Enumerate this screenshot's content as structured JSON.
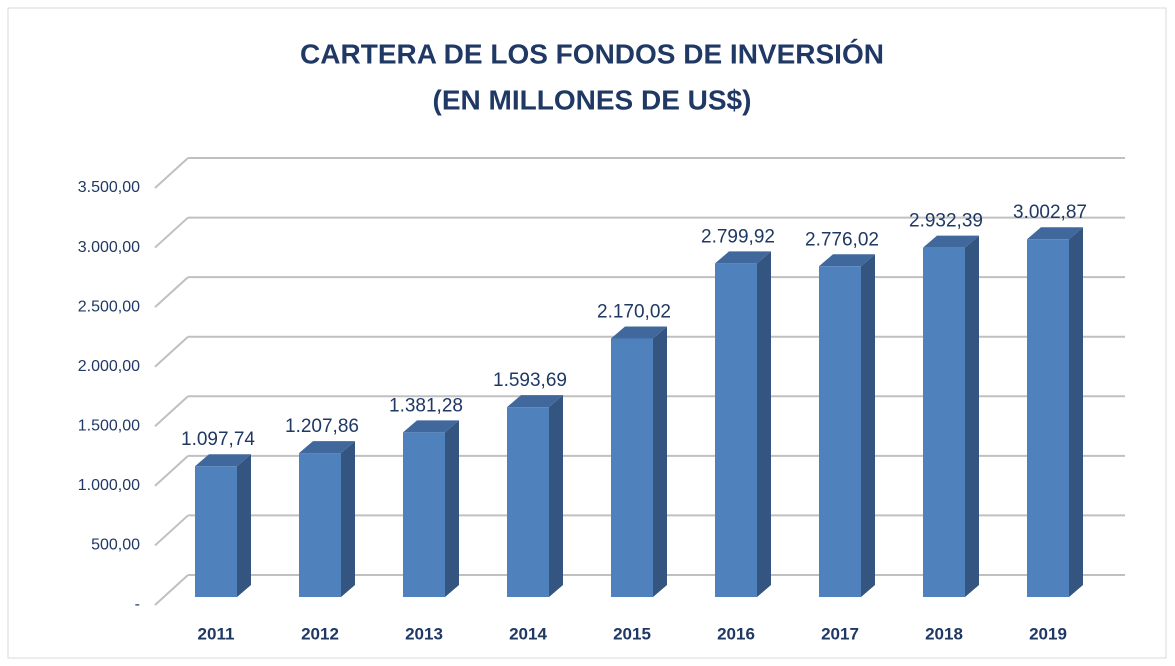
{
  "chart_data": {
    "type": "bar3d",
    "title": "CARTERA DE LOS FONDOS DE INVERSIÓN",
    "subtitle": "(EN MILLONES DE US$)",
    "categories": [
      "2011",
      "2012",
      "2013",
      "2014",
      "2015",
      "2016",
      "2017",
      "2018",
      "2019"
    ],
    "values": [
      1097.74,
      1207.86,
      1381.28,
      1593.69,
      2170.02,
      2799.92,
      2776.02,
      2932.39,
      3002.87
    ],
    "value_labels": [
      "1.097,74",
      "1.207,86",
      "1.381,28",
      "1.593,69",
      "2.170,02",
      "2.799,92",
      "2.776,02",
      "2.932,39",
      "3.002,87"
    ],
    "color": "#4f81bd",
    "ylim": [
      0,
      3500
    ],
    "yticks": [
      {
        "value": 0,
        "label": "-"
      },
      {
        "value": 500,
        "label": "500,00"
      },
      {
        "value": 1000,
        "label": "1.000,00"
      },
      {
        "value": 1500,
        "label": "1.500,00"
      },
      {
        "value": 2000,
        "label": "2.000,00"
      },
      {
        "value": 2500,
        "label": "2.500,00"
      },
      {
        "value": 3000,
        "label": "3.000,00"
      },
      {
        "value": 3500,
        "label": "3.500,00"
      }
    ],
    "grid": true
  }
}
